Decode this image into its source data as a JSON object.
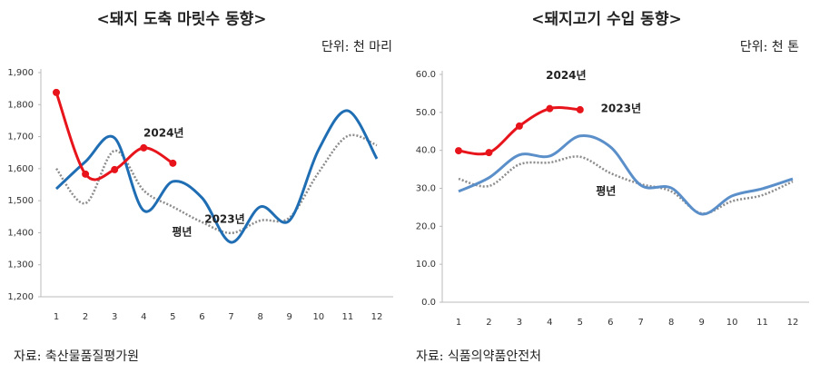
{
  "chart_data": [
    {
      "type": "line",
      "title": "<돼지 도축 마릿수 동향>",
      "unit": "단위: 천 마리",
      "source": "자료: 축산물품질평가원",
      "categories": [
        1,
        2,
        3,
        4,
        5,
        6,
        7,
        8,
        9,
        10,
        11,
        12
      ],
      "ylim": [
        1200,
        1900
      ],
      "yticks": [
        {
          "value": 1200,
          "label": "1,200"
        },
        {
          "value": 1300,
          "label": "1,300"
        },
        {
          "value": 1400,
          "label": "1,400"
        },
        {
          "value": 1500,
          "label": "1,500"
        },
        {
          "value": 1600,
          "label": "1,600"
        },
        {
          "value": 1700,
          "label": "1,700"
        },
        {
          "value": 1800,
          "label": "1,800"
        },
        {
          "value": 1900,
          "label": "1,900"
        }
      ],
      "series": [
        {
          "name": "평년",
          "color": "#8c8c8c",
          "values": [
            1600,
            1492,
            1656,
            1532,
            1481,
            1433,
            1399,
            1438,
            1447,
            1588,
            1702,
            1673
          ]
        },
        {
          "name": "2023년",
          "color": "#1f6db3",
          "values": [
            1537,
            1622,
            1696,
            1469,
            1560,
            1509,
            1370,
            1481,
            1438,
            1659,
            1781,
            1631
          ]
        },
        {
          "name": "2024년",
          "color": "#e8141b",
          "values": [
            1838,
            1583,
            1597,
            1665,
            1617,
            null,
            null,
            null,
            null,
            null,
            null,
            null
          ]
        }
      ]
    },
    {
      "type": "line",
      "title": "<돼지고기 수입 동향>",
      "unit": "단위: 천 톤",
      "source": "자료: 식품의약품안전처",
      "categories": [
        1,
        2,
        3,
        4,
        5,
        6,
        7,
        8,
        9,
        10,
        11,
        12
      ],
      "ylim": [
        0,
        60
      ],
      "yticks": [
        {
          "value": 0,
          "label": "0.0"
        },
        {
          "value": 10,
          "label": "10.0"
        },
        {
          "value": 20,
          "label": "20.0"
        },
        {
          "value": 30,
          "label": "30.0"
        },
        {
          "value": 40,
          "label": "40.0"
        },
        {
          "value": 50,
          "label": "50.0"
        },
        {
          "value": 60,
          "label": "60.0"
        }
      ],
      "series": [
        {
          "name": "평년",
          "color": "#8c8c8c",
          "values": [
            32.5,
            30.6,
            36.3,
            36.8,
            38.3,
            34.0,
            31.1,
            29.2,
            23.4,
            26.6,
            28.2,
            31.8
          ]
        },
        {
          "name": "2023년",
          "color": "#5b8fc9",
          "values": [
            29.2,
            32.8,
            38.8,
            38.5,
            43.8,
            40.9,
            30.8,
            30.1,
            23.2,
            28.0,
            29.9,
            32.5
          ]
        },
        {
          "name": "2024년",
          "color": "#e8141b",
          "values": [
            39.9,
            39.4,
            46.4,
            51.0,
            50.7,
            null,
            null,
            null,
            null,
            null,
            null,
            null
          ]
        }
      ]
    }
  ]
}
